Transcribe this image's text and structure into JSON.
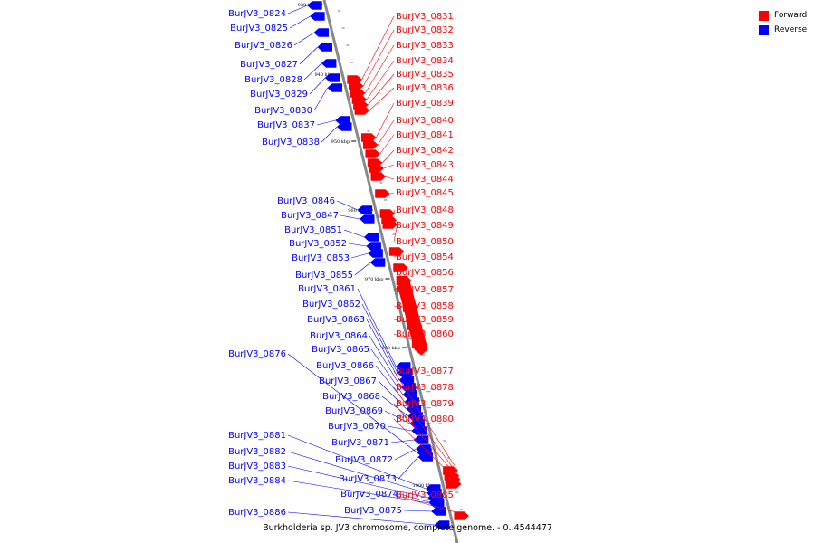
{
  "caption": "Burkholderia sp. JV3 chromosome, complete genome. - 0..4544477",
  "legend": [
    {
      "label": "Forward",
      "color": "#ff0000"
    },
    {
      "label": "Reverse",
      "color": "#0000ff"
    }
  ],
  "colors": {
    "forward": "#ff0000",
    "reverse": "#0000ff",
    "backbone": "#888888"
  },
  "scale": {
    "unit": "kbp",
    "ticks": [
      930,
      940,
      950,
      960,
      970,
      980,
      990,
      1000
    ]
  },
  "genes": [
    {
      "name": "BurJV3_0824",
      "strand": "reverse"
    },
    {
      "name": "BurJV3_0825",
      "strand": "reverse"
    },
    {
      "name": "BurJV3_0826",
      "strand": "reverse"
    },
    {
      "name": "BurJV3_0827",
      "strand": "reverse"
    },
    {
      "name": "BurJV3_0828",
      "strand": "reverse"
    },
    {
      "name": "BurJV3_0829",
      "strand": "reverse"
    },
    {
      "name": "BurJV3_0830",
      "strand": "reverse"
    },
    {
      "name": "BurJV3_0831",
      "strand": "forward"
    },
    {
      "name": "BurJV3_0832",
      "strand": "forward"
    },
    {
      "name": "BurJV3_0833",
      "strand": "forward"
    },
    {
      "name": "BurJV3_0834",
      "strand": "forward"
    },
    {
      "name": "BurJV3_0835",
      "strand": "forward"
    },
    {
      "name": "BurJV3_0836",
      "strand": "forward"
    },
    {
      "name": "BurJV3_0837",
      "strand": "reverse"
    },
    {
      "name": "BurJV3_0838",
      "strand": "reverse"
    },
    {
      "name": "BurJV3_0839",
      "strand": "forward"
    },
    {
      "name": "BurJV3_0840",
      "strand": "forward"
    },
    {
      "name": "BurJV3_0841",
      "strand": "forward"
    },
    {
      "name": "BurJV3_0842",
      "strand": "forward"
    },
    {
      "name": "BurJV3_0843",
      "strand": "forward"
    },
    {
      "name": "BurJV3_0844",
      "strand": "forward"
    },
    {
      "name": "BurJV3_0845",
      "strand": "forward"
    },
    {
      "name": "BurJV3_0846",
      "strand": "reverse"
    },
    {
      "name": "BurJV3_0847",
      "strand": "reverse"
    },
    {
      "name": "BurJV3_0848",
      "strand": "forward"
    },
    {
      "name": "BurJV3_0849",
      "strand": "forward"
    },
    {
      "name": "BurJV3_0850",
      "strand": "forward"
    },
    {
      "name": "BurJV3_0851",
      "strand": "reverse"
    },
    {
      "name": "BurJV3_0852",
      "strand": "reverse"
    },
    {
      "name": "BurJV3_0853",
      "strand": "reverse"
    },
    {
      "name": "BurJV3_0854",
      "strand": "forward"
    },
    {
      "name": "BurJV3_0855",
      "strand": "reverse"
    },
    {
      "name": "BurJV3_0856",
      "strand": "forward"
    },
    {
      "name": "BurJV3_0857",
      "strand": "forward"
    },
    {
      "name": "BurJV3_0858",
      "strand": "forward"
    },
    {
      "name": "BurJV3_0859",
      "strand": "forward"
    },
    {
      "name": "BurJV3_0860",
      "strand": "forward"
    },
    {
      "name": "BurJV3_0861",
      "strand": "reverse"
    },
    {
      "name": "BurJV3_0862",
      "strand": "reverse"
    },
    {
      "name": "BurJV3_0863",
      "strand": "reverse"
    },
    {
      "name": "BurJV3_0864",
      "strand": "reverse"
    },
    {
      "name": "BurJV3_0865",
      "strand": "reverse"
    },
    {
      "name": "BurJV3_0866",
      "strand": "reverse"
    },
    {
      "name": "BurJV3_0867",
      "strand": "reverse"
    },
    {
      "name": "BurJV3_0868",
      "strand": "reverse"
    },
    {
      "name": "BurJV3_0869",
      "strand": "reverse"
    },
    {
      "name": "BurJV3_0870",
      "strand": "reverse"
    },
    {
      "name": "BurJV3_0871",
      "strand": "reverse"
    },
    {
      "name": "BurJV3_0872",
      "strand": "reverse"
    },
    {
      "name": "BurJV3_0873",
      "strand": "reverse"
    },
    {
      "name": "BurJV3_0874",
      "strand": "reverse"
    },
    {
      "name": "BurJV3_0875",
      "strand": "reverse"
    },
    {
      "name": "BurJV3_0876",
      "strand": "reverse"
    },
    {
      "name": "BurJV3_0877",
      "strand": "forward"
    },
    {
      "name": "BurJV3_0878",
      "strand": "forward"
    },
    {
      "name": "BurJV3_0879",
      "strand": "forward"
    },
    {
      "name": "BurJV3_0880",
      "strand": "forward"
    },
    {
      "name": "BurJV3_0881",
      "strand": "reverse"
    },
    {
      "name": "BurJV3_0882",
      "strand": "reverse"
    },
    {
      "name": "BurJV3_0883",
      "strand": "reverse"
    },
    {
      "name": "BurJV3_0884",
      "strand": "reverse"
    },
    {
      "name": "BurJV3_0885",
      "strand": "forward"
    },
    {
      "name": "BurJV3_0886",
      "strand": "reverse"
    }
  ]
}
